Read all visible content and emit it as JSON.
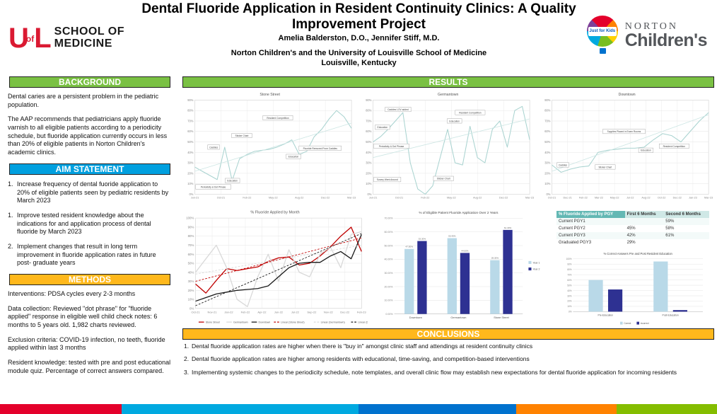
{
  "poster": {
    "title": "Dental Fluoride Application in Resident Continuity Clinics: A Quality Improvement Project",
    "authors": "Amelia Balderston, D.O., Jennifer Stiff, M.D.",
    "affiliation_line1": "Norton Children's and the University of Louisville School of Medicine",
    "affiliation_line2": "Louisville, Kentucky"
  },
  "logos": {
    "uofl": {
      "mark_u": "U",
      "mark_of": "of",
      "mark_l": "L",
      "line1": "SCHOOL OF",
      "line2": "MEDICINE",
      "red": "#da1a32"
    },
    "norton": {
      "line1": "NORTON",
      "line2": "Children's",
      "balloon_text": "Just for Kids"
    }
  },
  "left": {
    "background": {
      "heading": "BACKGROUND",
      "paragraphs": [
        "Dental caries are a persistent problem in the pediatric population.",
        "The AAP recommends that pediatricians apply fluoride varnish to all eligible patients according to a periodicity schedule, but fluoride application currently occurs in less than 20% of eligible patients in Norton Children's academic clinics."
      ]
    },
    "aim": {
      "heading": "AIM STATEMENT",
      "items": [
        {
          "num": "1.",
          "text": "Increase frequency of dental fuoride application to 20% of eligible patients seen by pediatric residents by March 2023"
        },
        {
          "num": "1.",
          "text": "Improve tested resident knowledge about the indications for and application process of dental fluoride by March 2023"
        },
        {
          "num": "2.",
          "text": "Implement changes that result in long term improvement in fluoride application rates in future post- graduate years"
        }
      ]
    },
    "methods": {
      "heading": "METHODS",
      "paragraphs": [
        "Interventions: PDSA cycles every 2-3 months",
        "Data collection: Reviewed \"dot phrase\" for \"fluoride applied\" response in eligible well child check notes: 6 months to 5 years old. 1,982 charts reviewed.",
        "Exclusion criteria: COVID-19 infection, no teeth, fluoride applied within last 3 months",
        "Resident knowledge: tested with pre and post educational module quiz. Percentage of correct answers compared."
      ]
    }
  },
  "results_heading": "RESULTS",
  "conclusions": {
    "heading": "CONCLUSIONS",
    "items": [
      {
        "num": "1.",
        "text": "Dental fluoride application rates are higher when there is \"buy in\" amongst clinic staff and attendings at resident continuity clinics"
      },
      {
        "num": "2.",
        "text": "Dental fluoride application rates are higher among residents with educational, time-saving, and competition-based interventions"
      },
      {
        "num": "3.",
        "text": "Implementing systemic changes to the periodicity schedule, note templates, and overall clinic flow may establish new expectations for dental fluoride application for incoming residents"
      }
    ]
  },
  "table": {
    "header": [
      "% Fluoride Applied by PGY",
      "First 6 Months",
      "Second 6 Months"
    ],
    "rows": [
      [
        "Current PGY1",
        "",
        "59%"
      ],
      [
        "Current PGY2",
        "45%",
        "58%"
      ],
      [
        "Current PGY3",
        "42%",
        "61%"
      ],
      [
        "Graduated PGY3",
        "29%",
        ""
      ]
    ]
  },
  "colors": {
    "header_green": "#7ac143",
    "header_blue": "#00a0df",
    "header_amber": "#ffb81c",
    "run_line_teal": "#a9d3d0",
    "bar_light_blue": "#b9d9e8",
    "bar_dark_blue": "#2e3192"
  },
  "chart_data": [
    {
      "type": "line",
      "vh": 158,
      "title": "Stone Street",
      "ymax": 90,
      "ystep": 10,
      "xticks": [
        "Jun-21",
        "Oct-21",
        "Feb-22",
        "May-22",
        "Aug-22",
        "Dec-22",
        "Mar-23"
      ],
      "series": [
        {
          "name": "Stone Street",
          "color": "#a9d3d0",
          "width": 1,
          "values": [
            26,
            22,
            18,
            14,
            45,
            13,
            34,
            38,
            41,
            42,
            43,
            45,
            48,
            52,
            38,
            41,
            55,
            62,
            72,
            80,
            74,
            63
          ]
        },
        {
          "name": "Trend",
          "color": "#cde6e4",
          "width": 0.8,
          "values": [
            22,
            68
          ]
        }
      ],
      "annotations": [
        {
          "label": "Periodicity & Dot Phrase",
          "x": 0.08,
          "y": 7
        },
        {
          "label": "Caddies",
          "x": 0.12,
          "y": 45
        },
        {
          "label": "Education",
          "x": 0.24,
          "y": 13
        },
        {
          "label": "Sticker Chart",
          "x": 0.3,
          "y": 56
        },
        {
          "label": "Resident Competition",
          "x": 0.53,
          "y": 73
        },
        {
          "label": "Education",
          "x": 0.63,
          "y": 36
        },
        {
          "label": "Fluoride Removed From Caddies",
          "x": 0.8,
          "y": 44
        }
      ]
    },
    {
      "type": "line",
      "vh": 158,
      "title": "Germantown",
      "ymax": 90,
      "ystep": 10,
      "xticks": [
        "Jun-21",
        "Oct-21",
        "Feb-22",
        "May-22",
        "Aug-22",
        "Dec-22",
        "Mar-23"
      ],
      "series": [
        {
          "name": "Germantown",
          "color": "#a9d3d0",
          "width": 1,
          "values": [
            50,
            55,
            62,
            70,
            78,
            30,
            5,
            0,
            8,
            35,
            62,
            30,
            28,
            65,
            35,
            30,
            62,
            70,
            45,
            80,
            84,
            52
          ]
        },
        {
          "name": "Trend",
          "color": "#cde6e4",
          "width": 0.8,
          "values": [
            35,
            72
          ]
        }
      ],
      "annotations": [
        {
          "label": "Education",
          "x": 0.06,
          "y": 64
        },
        {
          "label": "Caddies LOV added",
          "x": 0.16,
          "y": 81
        },
        {
          "label": "Periodicity & Dot Phrase",
          "x": 0.08,
          "y": 46
        },
        {
          "label": "Survey Went Around",
          "x": 0.09,
          "y": 14
        },
        {
          "label": "Sticker Chart",
          "x": 0.45,
          "y": 15
        },
        {
          "label": "Education",
          "x": 0.52,
          "y": 70
        },
        {
          "label": "Resident Competition",
          "x": 0.62,
          "y": 78
        }
      ]
    },
    {
      "type": "line",
      "vh": 158,
      "title": "Downtown",
      "ymax": 90,
      "ystep": 10,
      "xticks": [
        "Oct-21",
        "Dec-21",
        "Feb-22",
        "Mar-22",
        "May-22",
        "Jul-22",
        "Aug-22",
        "Oct-22",
        "Dec-22",
        "Jan-23",
        "Mar-23"
      ],
      "series": [
        {
          "name": "Downtown",
          "color": "#a9d3d0",
          "width": 1,
          "values": [
            28,
            21,
            24,
            26,
            27,
            40,
            42,
            43,
            44,
            44,
            45,
            52,
            58,
            56,
            50,
            60,
            70,
            78
          ]
        },
        {
          "name": "Trend",
          "color": "#cde6e4",
          "width": 0.8,
          "values": [
            22,
            76
          ]
        }
      ],
      "annotations": [
        {
          "label": "Caddies",
          "x": 0.07,
          "y": 28
        },
        {
          "label": "Sticker Chart",
          "x": 0.34,
          "y": 26
        },
        {
          "label": "Supplies Placed in Exam Rooms",
          "x": 0.46,
          "y": 60
        },
        {
          "label": "Education",
          "x": 0.6,
          "y": 42
        },
        {
          "label": "Resident Competition",
          "x": 0.78,
          "y": 46
        }
      ]
    },
    {
      "type": "line",
      "vh": 154,
      "title": "% Fluoride Applied by Month",
      "ymax": 100,
      "ystep": 10,
      "legend": true,
      "xticks": [
        "Oct-21",
        "Nov-21",
        "Jan-22",
        "Feb-22",
        "Apr-22",
        "Jun-22",
        "Jul-22",
        "Sep-22",
        "Nov-22",
        "Dec-22",
        "Feb-23"
      ],
      "series": [
        {
          "name": "Stone Street",
          "color": "#c00000",
          "width": 1.2,
          "values": [
            27,
            17,
            31,
            44,
            42,
            44,
            46,
            52,
            56,
            57,
            48,
            50,
            58,
            68,
            80,
            90,
            63
          ]
        },
        {
          "name": "Germantown",
          "color": "#d9d9d9",
          "width": 1.2,
          "values": [
            40,
            55,
            70,
            45,
            10,
            2,
            35,
            60,
            30,
            65,
            40,
            35,
            60,
            68,
            45,
            82,
            85
          ]
        },
        {
          "name": "Downtown",
          "color": "#1a1a1a",
          "width": 1.2,
          "values": [
            8,
            12,
            16,
            18,
            20,
            21,
            22,
            25,
            35,
            45,
            50,
            51,
            51,
            58,
            63,
            55,
            82
          ]
        },
        {
          "name": "Linear (Stone Street)",
          "color": "#c00000",
          "width": 0.8,
          "dash": true,
          "values": [
            30,
            78
          ]
        },
        {
          "name": "Linear (Germantown)",
          "color": "#d9d9d9",
          "width": 0.8,
          "dash": true,
          "values": [
            38,
            70
          ]
        },
        {
          "name": "Linear (Downtown)",
          "color": "#1a1a1a",
          "width": 0.8,
          "dash": true,
          "values": [
            3,
            83
          ]
        }
      ],
      "annotations": []
    },
    {
      "type": "bar",
      "vh": 165,
      "title": "% of Eligible Patient Fluoride Application Over 2 Years",
      "ymax": 70,
      "ylabels": [
        "0.00%",
        "10.00%",
        "20.00%",
        "30.00%",
        "40.00%",
        "50.00%",
        "60.00%",
        "70.00%"
      ],
      "categories": [
        "Downtown",
        "Germantown",
        "Stone Street"
      ],
      "legend": "right",
      "series": [
        {
          "name": "Year 1",
          "color": "#b9d9e8",
          "values": [
            47.5,
            55.4,
            39.3
          ],
          "labels": [
            "47.50%",
            "55.40%",
            "39.30%"
          ]
        },
        {
          "name": "Year 2",
          "color": "#2e3192",
          "values": [
            53.3,
            44.6,
            61.4
          ],
          "labels": [
            "53.30%",
            "44.60%",
            "61.40%"
          ]
        }
      ]
    },
    {
      "type": "bar",
      "vh": 112,
      "title": "% Correct Answers Pre and Post Resident Education",
      "ymax": 100,
      "ylabels": [
        "0%",
        "10%",
        "20%",
        "30%",
        "40%",
        "50%",
        "60%",
        "70%",
        "80%",
        "90%",
        "100%"
      ],
      "categories": [
        "Pre-Education",
        "Post-Education"
      ],
      "legend": "bottom",
      "series": [
        {
          "name": "Correct",
          "color": "#b9d9e8",
          "values": [
            60,
            95
          ],
          "labels": null
        },
        {
          "name": "Incorrect",
          "color": "#2e3192",
          "values": [
            42,
            3
          ],
          "labels": null
        }
      ]
    }
  ],
  "footer_stripe": [
    {
      "color": "#e4002b",
      "width_pct": 17
    },
    {
      "color": "#00a9e0",
      "width_pct": 33
    },
    {
      "color": "#0072ce",
      "width_pct": 22
    },
    {
      "color": "#ff8200",
      "width_pct": 14
    },
    {
      "color": "#84bd00",
      "width_pct": 14
    }
  ]
}
